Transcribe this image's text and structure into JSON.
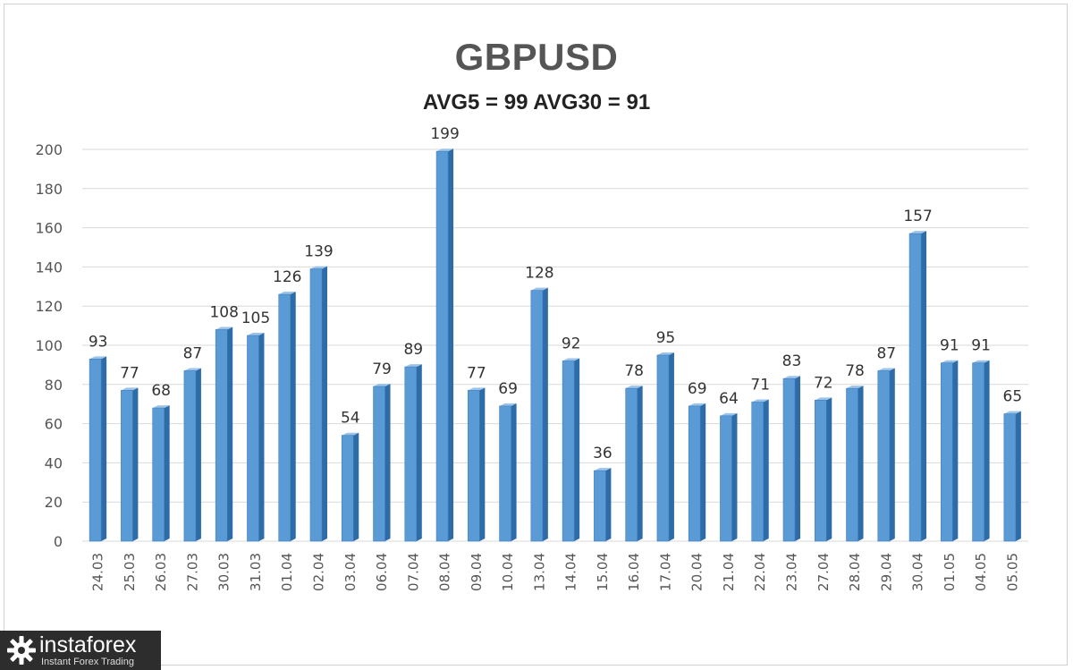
{
  "chart_data": {
    "type": "bar",
    "title": "GBPUSD",
    "subtitle": "AVG5 = 99 AVG30 = 91",
    "categories": [
      "24.03",
      "25.03",
      "26.03",
      "27.03",
      "30.03",
      "31.03",
      "01.04",
      "02.04",
      "03.04",
      "06.04",
      "07.04",
      "08.04",
      "09.04",
      "10.04",
      "13.04",
      "14.04",
      "15.04",
      "16.04",
      "17.04",
      "20.04",
      "21.04",
      "22.04",
      "23.04",
      "27.04",
      "28.04",
      "29.04",
      "30.04",
      "01.05",
      "04.05",
      "05.05"
    ],
    "values": [
      93,
      77,
      68,
      87,
      108,
      105,
      126,
      139,
      54,
      79,
      89,
      199,
      77,
      69,
      128,
      92,
      36,
      78,
      95,
      69,
      64,
      71,
      83,
      72,
      78,
      87,
      157,
      91,
      91,
      65
    ],
    "ylim": [
      0,
      200
    ],
    "yticks": [
      0,
      20,
      40,
      60,
      80,
      100,
      120,
      140,
      160,
      180,
      200
    ],
    "grid": true,
    "legend": "none",
    "bar_color": "#5b9bd5"
  },
  "branding": {
    "name": "instaforex",
    "tagline": "Instant Forex Trading"
  }
}
